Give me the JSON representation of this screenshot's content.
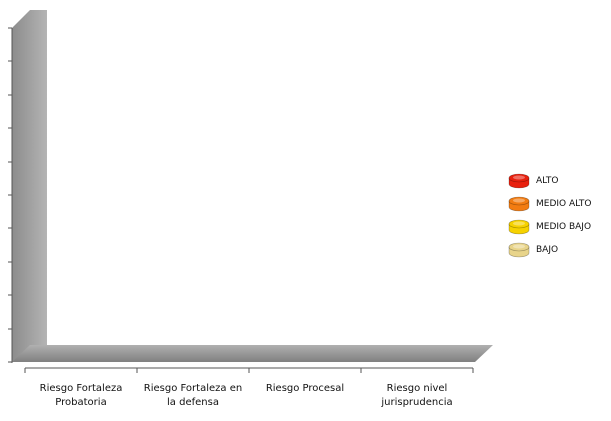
{
  "chart_data": {
    "type": "bar3d",
    "categories": [
      "Riesgo Fortaleza Probatoria",
      "Riesgo Fortaleza en la defensa",
      "Riesgo Procesal",
      "Riesgo nivel jurisprudencia"
    ],
    "series": [
      {
        "name": "ALTO",
        "color": "#e8200e"
      },
      {
        "name": "MEDIO ALTO",
        "color": "#f27c12"
      },
      {
        "name": "MEDIO BAJO",
        "color": "#f6d200"
      },
      {
        "name": "BAJO",
        "color": "#e8d48a"
      }
    ]
  }
}
